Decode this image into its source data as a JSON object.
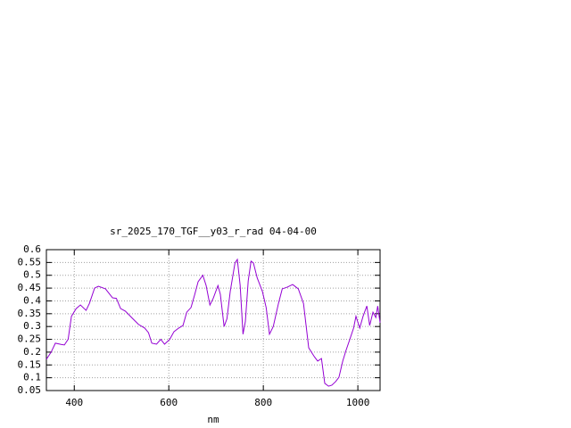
{
  "chart_data": {
    "type": "line",
    "title": "sr_2025_170_TGF__y03_r_rad 04-04-00",
    "x_label": "nm",
    "x": [
      341,
      351,
      360,
      372,
      379,
      387,
      394,
      404,
      413,
      425,
      432,
      443,
      451,
      466,
      481,
      489,
      498,
      508,
      523,
      536,
      549,
      557,
      564,
      574,
      583,
      591,
      602,
      611,
      621,
      630,
      638,
      647,
      655,
      662,
      672,
      679,
      687,
      694,
      704,
      709,
      717,
      723,
      730,
      740,
      745,
      751,
      757,
      762,
      768,
      774,
      779,
      787,
      798,
      806,
      813,
      821,
      832,
      840,
      851,
      862,
      874,
      885,
      896,
      908,
      915,
      923,
      930,
      938,
      945,
      953,
      960,
      968,
      975,
      983,
      991,
      996,
      1004,
      1011,
      1019,
      1025,
      1032,
      1038,
      1042,
      1047
    ],
    "series": [
      {
        "color": "#9400d3",
        "values": [
          0.172,
          0.2,
          0.235,
          0.23,
          0.228,
          0.25,
          0.34,
          0.37,
          0.384,
          0.363,
          0.39,
          0.45,
          0.457,
          0.447,
          0.412,
          0.41,
          0.37,
          0.36,
          0.332,
          0.308,
          0.294,
          0.276,
          0.235,
          0.231,
          0.25,
          0.231,
          0.25,
          0.28,
          0.294,
          0.304,
          0.356,
          0.374,
          0.426,
          0.475,
          0.5,
          0.46,
          0.384,
          0.41,
          0.46,
          0.426,
          0.3,
          0.33,
          0.437,
          0.548,
          0.562,
          0.46,
          0.27,
          0.32,
          0.478,
          0.555,
          0.548,
          0.49,
          0.437,
          0.374,
          0.27,
          0.3,
          0.39,
          0.447,
          0.454,
          0.464,
          0.447,
          0.39,
          0.217,
          0.182,
          0.165,
          0.175,
          0.078,
          0.067,
          0.071,
          0.085,
          0.102,
          0.165,
          0.207,
          0.25,
          0.294,
          0.34,
          0.294,
          0.34,
          0.38,
          0.304,
          0.356,
          0.335,
          0.38,
          0.315
        ]
      }
    ],
    "xlim": [
      341,
      1047
    ],
    "ylim": [
      0.05,
      0.6
    ],
    "xticks": [
      400,
      600,
      800,
      1000
    ],
    "yticks": [
      0.05,
      0.1,
      0.15,
      0.2,
      0.25,
      0.3,
      0.35,
      0.4,
      0.45,
      0.5,
      0.55,
      0.6
    ],
    "grid": true
  }
}
